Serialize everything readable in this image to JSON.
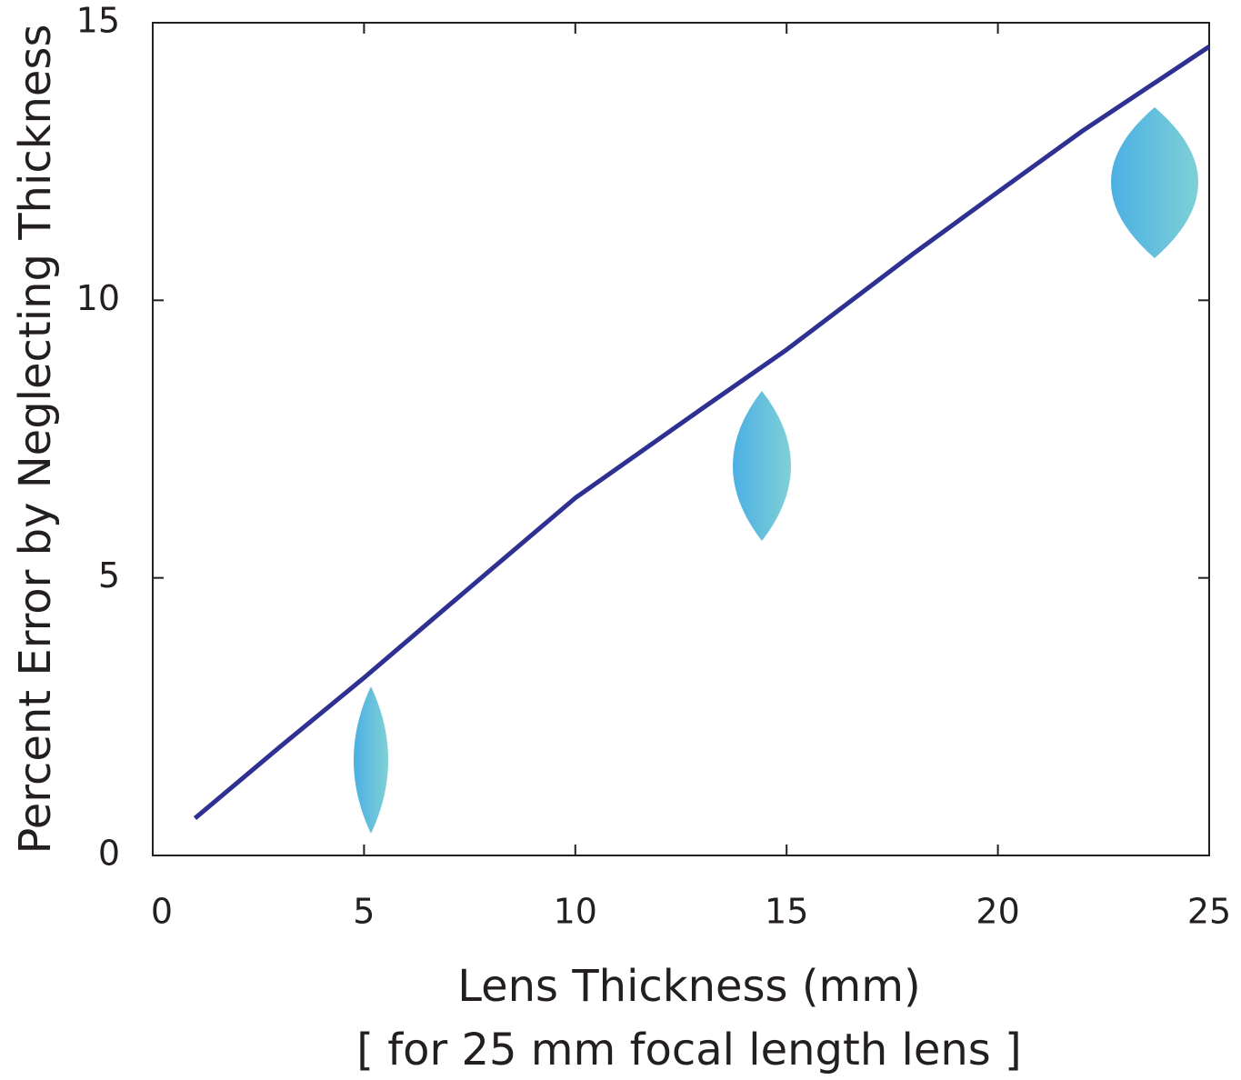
{
  "chart_data": {
    "type": "line",
    "x_label": "Lens Thickness (mm)",
    "x_sublabel": "[ for 25 mm focal length lens ]",
    "y_label": "Percent Error by Neglecting Thickness",
    "series": [
      {
        "color": "#2e3192",
        "x": [
          1,
          3,
          5,
          7,
          10,
          13,
          15,
          18,
          20,
          22,
          25
        ],
        "values": [
          0.67,
          1.95,
          3.2,
          4.5,
          6.44,
          8.05,
          9.11,
          10.84,
          11.95,
          13.05,
          14.57
        ]
      }
    ],
    "xlim": [
      0,
      25
    ],
    "xticks": [
      0,
      5,
      10,
      15,
      20,
      25
    ],
    "ylim": [
      0,
      15
    ],
    "yticks": [
      0,
      5,
      10,
      15
    ],
    "grid": false
  }
}
